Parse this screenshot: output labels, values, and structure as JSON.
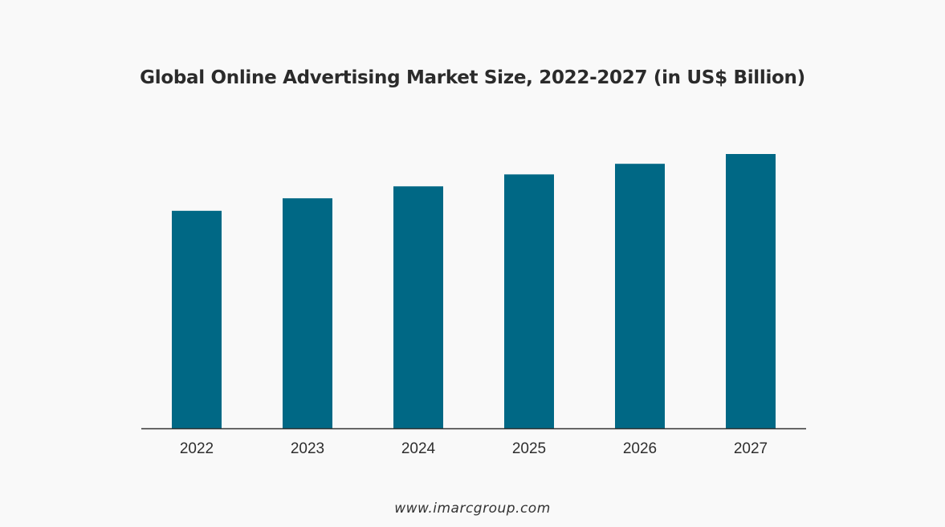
{
  "chart_data": {
    "type": "bar",
    "title": "Global Online Advertising Market Size, 2022-2027 (in US$ Billion)",
    "xlabel": "",
    "ylabel": "",
    "categories": [
      "2022",
      "2023",
      "2024",
      "2025",
      "2026",
      "2027"
    ],
    "values": [
      80.1,
      84.7,
      89.1,
      93.5,
      97.4,
      101.0
    ],
    "ylim": [
      0,
      101.0
    ],
    "grid": false,
    "legend": "none",
    "bar_color": "#006885",
    "axis_color": "#333333"
  },
  "footer": {
    "source": "www.imarcgroup.com"
  }
}
